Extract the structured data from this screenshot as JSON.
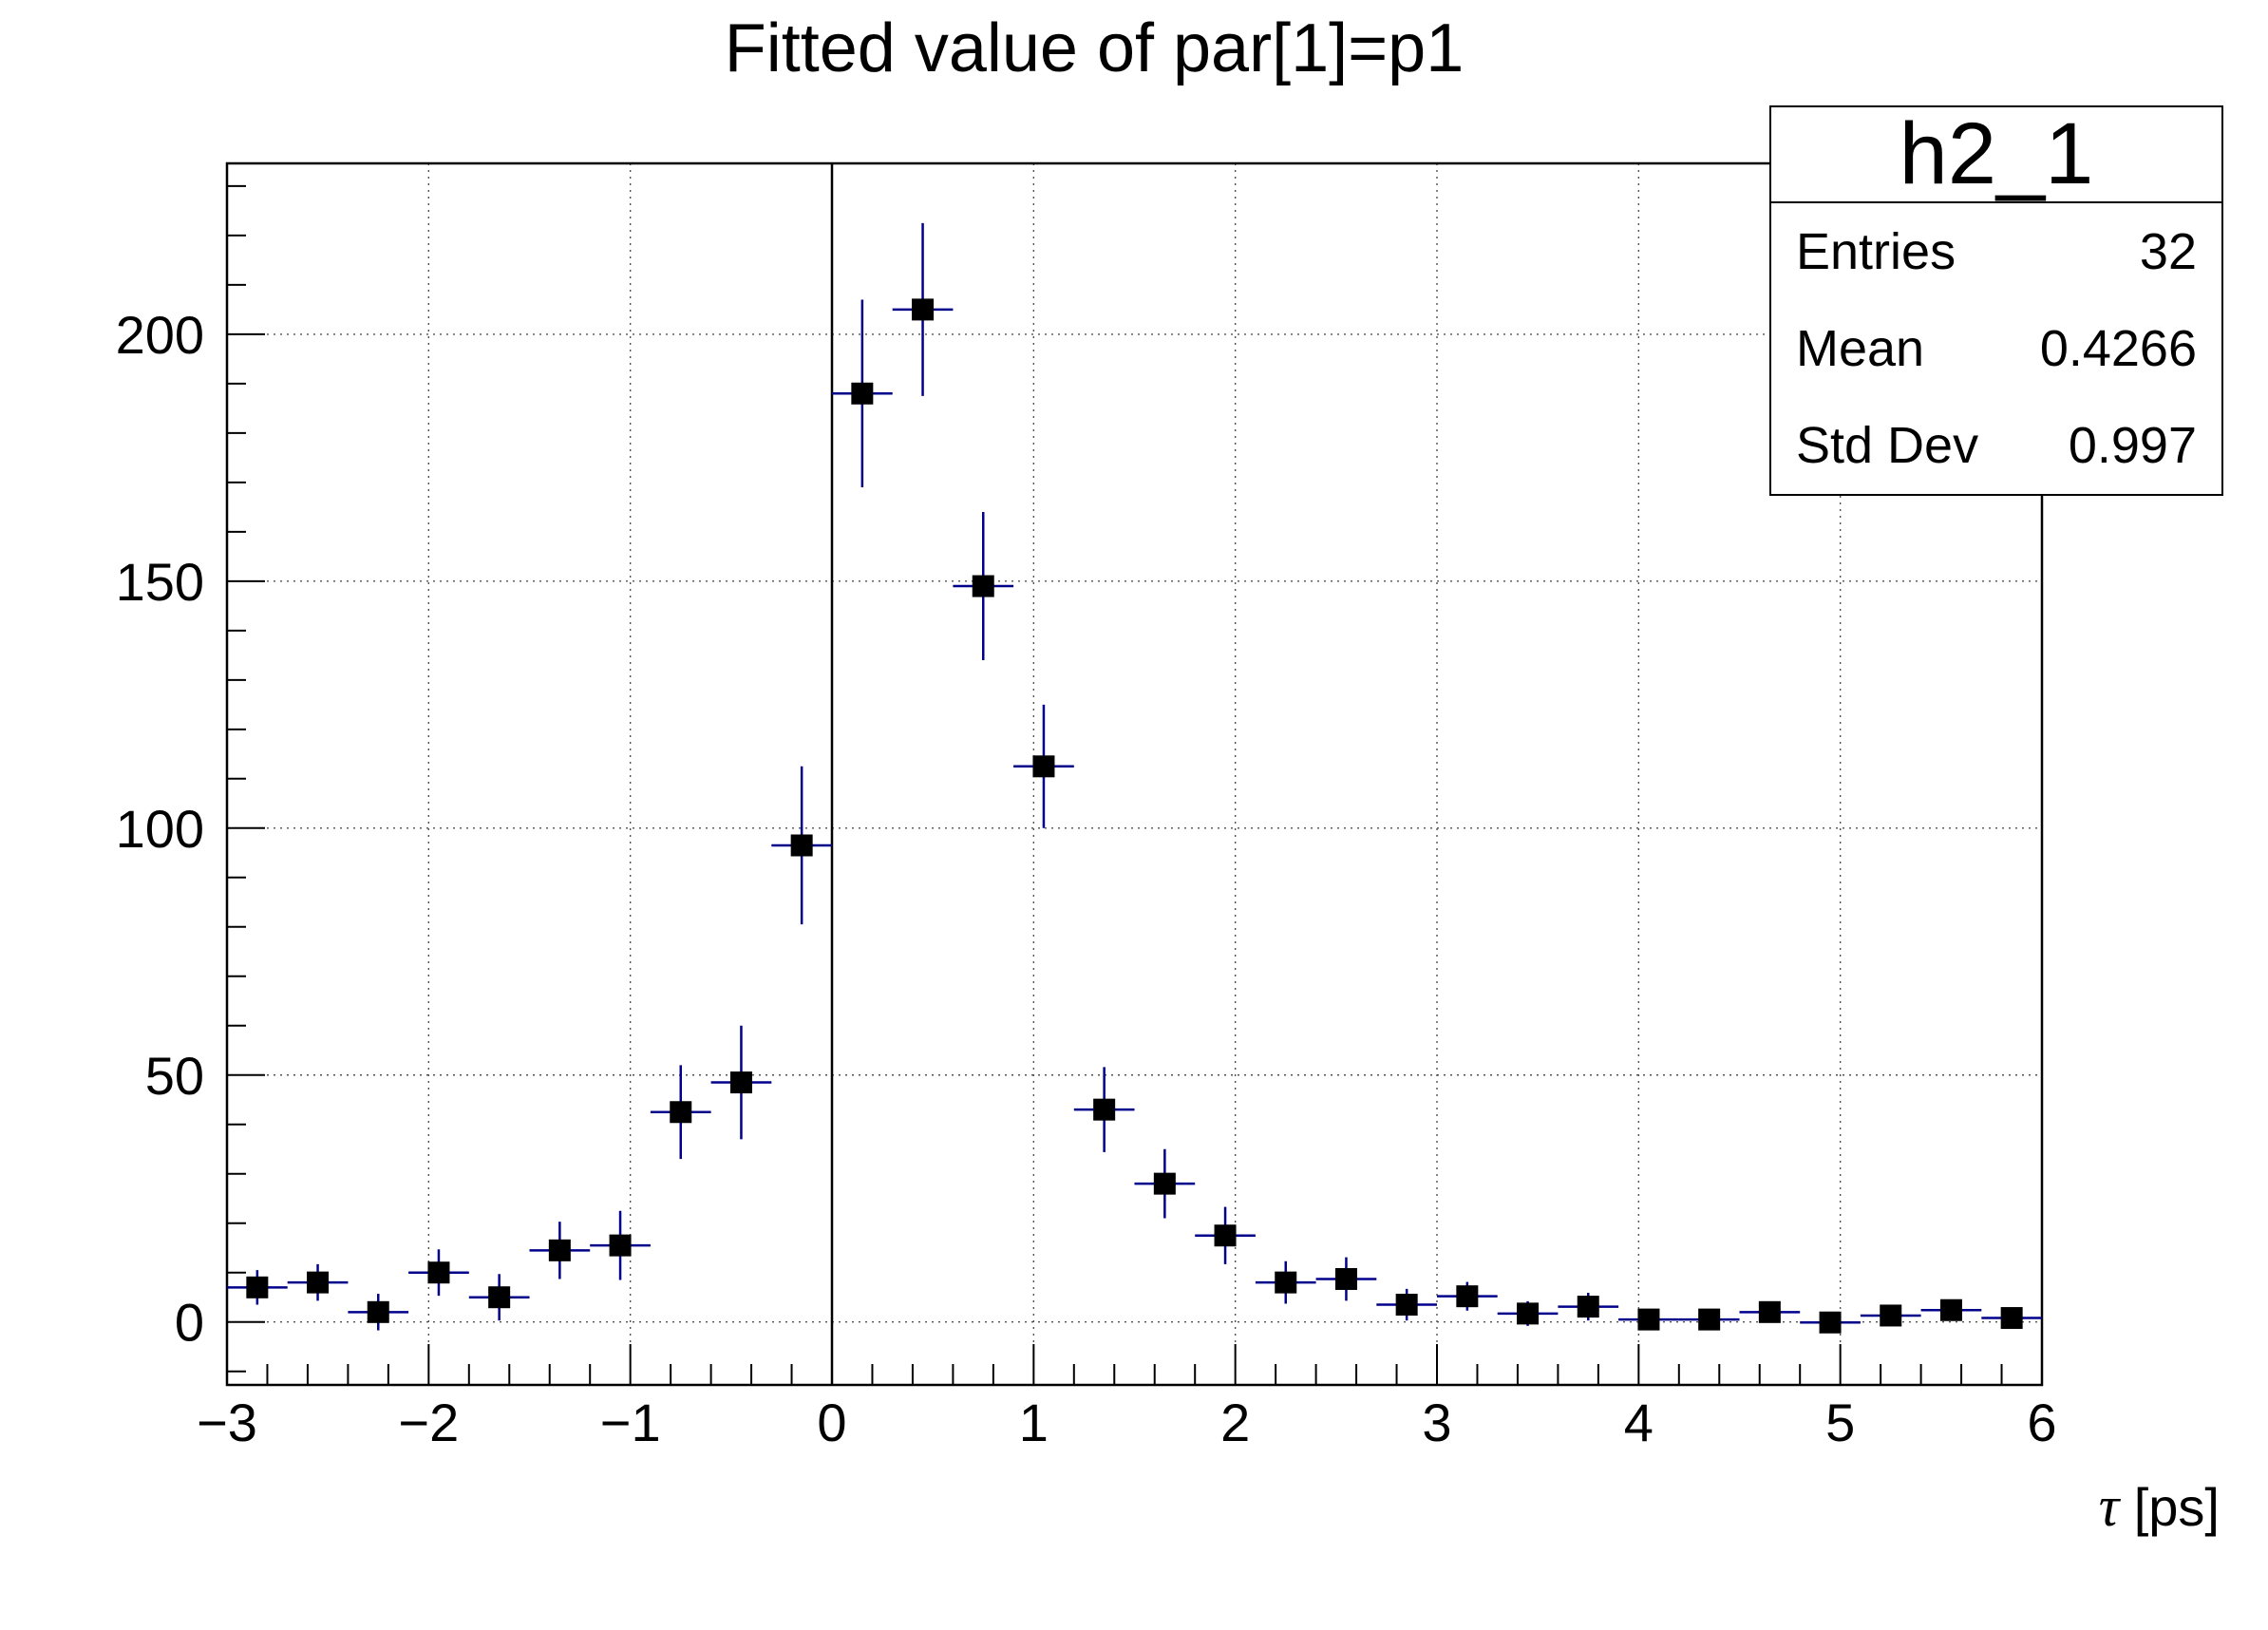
{
  "title": "Fitted value of par[1]=p1",
  "stats_box": {
    "title": "h2_1",
    "rows": [
      {
        "label": "Entries",
        "value": "32"
      },
      {
        "label": "Mean",
        "value": "0.4266"
      },
      {
        "label": "Std Dev",
        "value": "0.997"
      }
    ]
  },
  "axis": {
    "x_title_symbol": "τ",
    "x_title_rest": " [ps]"
  },
  "chart_data": {
    "type": "scatter",
    "title": "Fitted value of par[1]=p1",
    "xlabel": "τ [ps]",
    "ylabel": "",
    "xlim": [
      -3,
      6
    ],
    "ylim": [
      -12.75,
      234.6
    ],
    "x_major_ticks": [
      -3,
      -2,
      -1,
      0,
      1,
      2,
      3,
      4,
      5,
      6
    ],
    "x_tick_labels": [
      "−3",
      "−2",
      "−1",
      "0",
      "1",
      "2",
      "3",
      "4",
      "5",
      "6"
    ],
    "x_minor_step": 0.2,
    "y_major_ticks": [
      0,
      50,
      100,
      150,
      200
    ],
    "y_tick_labels": [
      "0",
      "50",
      "100",
      "150",
      "200"
    ],
    "y_minor_step": 10,
    "y_minor_range": [
      -10,
      230
    ],
    "grid": true,
    "grid_style": "dotted-on-major-ticks",
    "grid_color": "#333333",
    "zero_line_x": 0,
    "legend": "none",
    "marker": "filled-square",
    "marker_color": "#000000",
    "error_bar_color": "#00008b",
    "bin_width": 0.3,
    "points": [
      {
        "x": -2.85,
        "y": 7,
        "ey": 3.5,
        "ex": 0.15
      },
      {
        "x": -2.55,
        "y": 8,
        "ey": 3.7,
        "ex": 0.15
      },
      {
        "x": -2.25,
        "y": 2,
        "ey": 3.7,
        "ex": 0.15
      },
      {
        "x": -1.95,
        "y": 10,
        "ey": 4.7,
        "ex": 0.15
      },
      {
        "x": -1.65,
        "y": 5,
        "ey": 4.7,
        "ex": 0.15
      },
      {
        "x": -1.35,
        "y": 14.5,
        "ey": 5.8,
        "ex": 0.15
      },
      {
        "x": -1.05,
        "y": 15.5,
        "ey": 7,
        "ex": 0.15
      },
      {
        "x": -0.75,
        "y": 42.5,
        "ey": 9.5,
        "ex": 0.15
      },
      {
        "x": -0.45,
        "y": 48.5,
        "ey": 11.5,
        "ex": 0.15
      },
      {
        "x": -0.15,
        "y": 96.5,
        "ey": 16,
        "ex": 0.15
      },
      {
        "x": 0.15,
        "y": 188,
        "ey": 19,
        "ex": 0.15
      },
      {
        "x": 0.45,
        "y": 205,
        "ey": 17.5,
        "ex": 0.15
      },
      {
        "x": 0.75,
        "y": 149,
        "ey": 15,
        "ex": 0.15
      },
      {
        "x": 1.05,
        "y": 112.5,
        "ey": 12.5,
        "ex": 0.15
      },
      {
        "x": 1.35,
        "y": 43,
        "ey": 8.6,
        "ex": 0.15
      },
      {
        "x": 1.65,
        "y": 28,
        "ey": 7,
        "ex": 0.15
      },
      {
        "x": 1.95,
        "y": 17.5,
        "ey": 5.8,
        "ex": 0.15
      },
      {
        "x": 2.25,
        "y": 8,
        "ey": 4.3,
        "ex": 0.15
      },
      {
        "x": 2.55,
        "y": 8.7,
        "ey": 4.4,
        "ex": 0.15
      },
      {
        "x": 2.85,
        "y": 3.5,
        "ey": 3.2,
        "ex": 0.15
      },
      {
        "x": 3.15,
        "y": 5.2,
        "ey": 2.9,
        "ex": 0.15
      },
      {
        "x": 3.45,
        "y": 1.7,
        "ey": 2.5,
        "ex": 0.15
      },
      {
        "x": 3.75,
        "y": 3.1,
        "ey": 2.8,
        "ex": 0.15
      },
      {
        "x": 4.05,
        "y": 0.5,
        "ey": 1.5,
        "ex": 0.15
      },
      {
        "x": 4.35,
        "y": 0.5,
        "ey": 1.5,
        "ex": 0.15
      },
      {
        "x": 4.65,
        "y": 2,
        "ey": 2.1,
        "ex": 0.15
      },
      {
        "x": 4.95,
        "y": -0.1,
        "ey": 1.2,
        "ex": 0.15
      },
      {
        "x": 5.25,
        "y": 1.3,
        "ey": 1.6,
        "ex": 0.15
      },
      {
        "x": 5.55,
        "y": 2.4,
        "ey": 1.8,
        "ex": 0.15
      },
      {
        "x": 5.85,
        "y": 0.8,
        "ey": 1.5,
        "ex": 0.15
      }
    ]
  }
}
